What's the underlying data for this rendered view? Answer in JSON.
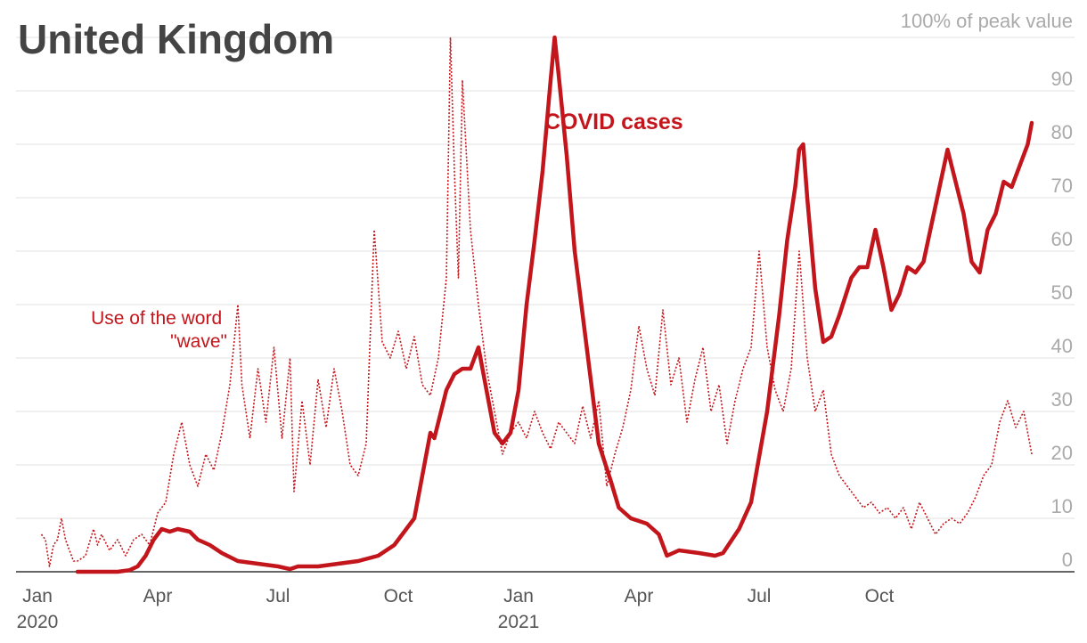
{
  "chart_data": {
    "type": "line",
    "title": "United Kingdom",
    "ylabel": "100% of peak value",
    "ylim": [
      0,
      100
    ],
    "yticks": [
      "0",
      "10",
      "20",
      "30",
      "40",
      "50",
      "60",
      "70",
      "80",
      "90"
    ],
    "xlim_months": [
      0,
      25
    ],
    "xticks": [
      {
        "month": 0,
        "label": "Jan",
        "sublabel": "2020"
      },
      {
        "month": 3,
        "label": "Apr",
        "sublabel": ""
      },
      {
        "month": 6,
        "label": "Jul",
        "sublabel": ""
      },
      {
        "month": 9,
        "label": "Oct",
        "sublabel": ""
      },
      {
        "month": 12,
        "label": "Jan",
        "sublabel": "2021"
      },
      {
        "month": 15,
        "label": "Apr",
        "sublabel": ""
      },
      {
        "month": 18,
        "label": "Jul",
        "sublabel": ""
      },
      {
        "month": 21,
        "label": "Oct",
        "sublabel": ""
      }
    ],
    "colors": {
      "series": "#c3161c",
      "grid": "#e2e2e2",
      "tick": "#aaaaaa",
      "title": "#444444"
    },
    "series": [
      {
        "name": "COVID cases",
        "style": "solid",
        "annotation": "COVID cases",
        "points": [
          [
            1.0,
            0
          ],
          [
            1.5,
            0
          ],
          [
            2.0,
            0
          ],
          [
            2.3,
            0.3
          ],
          [
            2.5,
            1
          ],
          [
            2.7,
            3
          ],
          [
            2.9,
            6
          ],
          [
            3.1,
            8
          ],
          [
            3.3,
            7.5
          ],
          [
            3.5,
            8
          ],
          [
            3.8,
            7.5
          ],
          [
            4.0,
            6
          ],
          [
            4.3,
            5
          ],
          [
            4.6,
            3.5
          ],
          [
            5.0,
            2
          ],
          [
            5.5,
            1.5
          ],
          [
            6.0,
            1
          ],
          [
            6.3,
            0.5
          ],
          [
            6.5,
            1
          ],
          [
            7.0,
            1
          ],
          [
            7.5,
            1.5
          ],
          [
            8.0,
            2
          ],
          [
            8.5,
            3
          ],
          [
            8.9,
            5
          ],
          [
            9.2,
            8
          ],
          [
            9.4,
            10
          ],
          [
            9.6,
            18
          ],
          [
            9.8,
            26
          ],
          [
            9.9,
            25
          ],
          [
            10.0,
            28
          ],
          [
            10.2,
            34
          ],
          [
            10.4,
            37
          ],
          [
            10.6,
            38
          ],
          [
            10.8,
            38
          ],
          [
            11.0,
            42
          ],
          [
            11.2,
            34
          ],
          [
            11.4,
            26
          ],
          [
            11.6,
            24
          ],
          [
            11.8,
            26
          ],
          [
            12.0,
            34
          ],
          [
            12.2,
            50
          ],
          [
            12.4,
            62
          ],
          [
            12.6,
            75
          ],
          [
            12.8,
            92
          ],
          [
            12.9,
            100
          ],
          [
            13.0,
            93
          ],
          [
            13.2,
            78
          ],
          [
            13.4,
            60
          ],
          [
            13.6,
            48
          ],
          [
            13.8,
            36
          ],
          [
            14.0,
            24
          ],
          [
            14.3,
            17
          ],
          [
            14.5,
            12
          ],
          [
            14.8,
            10
          ],
          [
            15.2,
            9
          ],
          [
            15.5,
            7
          ],
          [
            15.7,
            3
          ],
          [
            16.0,
            4
          ],
          [
            16.5,
            3.5
          ],
          [
            16.9,
            3
          ],
          [
            17.1,
            3.5
          ],
          [
            17.5,
            8
          ],
          [
            17.8,
            13
          ],
          [
            18.2,
            30
          ],
          [
            18.5,
            48
          ],
          [
            18.7,
            62
          ],
          [
            18.9,
            72
          ],
          [
            19.0,
            79
          ],
          [
            19.1,
            80
          ],
          [
            19.2,
            70
          ],
          [
            19.4,
            53
          ],
          [
            19.6,
            43
          ],
          [
            19.8,
            44
          ],
          [
            20.0,
            48
          ],
          [
            20.3,
            55
          ],
          [
            20.5,
            57
          ],
          [
            20.7,
            57
          ],
          [
            20.9,
            64
          ],
          [
            21.1,
            57
          ],
          [
            21.3,
            49
          ],
          [
            21.5,
            52
          ],
          [
            21.7,
            57
          ],
          [
            21.9,
            56
          ],
          [
            22.1,
            58
          ],
          [
            22.3,
            65
          ],
          [
            22.5,
            72
          ],
          [
            22.7,
            79
          ],
          [
            22.9,
            73
          ],
          [
            23.1,
            67
          ],
          [
            23.3,
            58
          ],
          [
            23.5,
            56
          ],
          [
            23.7,
            64
          ],
          [
            23.9,
            67
          ],
          [
            24.1,
            73
          ],
          [
            24.3,
            72
          ],
          [
            24.5,
            76
          ],
          [
            24.7,
            80
          ],
          [
            24.8,
            84
          ]
        ]
      },
      {
        "name": "Use of the word \"wave\"",
        "style": "dotted",
        "annotation": "Use of the word \"wave\"",
        "points": [
          [
            0.1,
            7
          ],
          [
            0.2,
            6
          ],
          [
            0.3,
            1
          ],
          [
            0.4,
            5
          ],
          [
            0.5,
            6
          ],
          [
            0.6,
            10
          ],
          [
            0.7,
            6
          ],
          [
            0.8,
            4
          ],
          [
            0.9,
            2
          ],
          [
            1.0,
            2
          ],
          [
            1.2,
            3
          ],
          [
            1.4,
            8
          ],
          [
            1.5,
            5
          ],
          [
            1.6,
            7
          ],
          [
            1.8,
            4
          ],
          [
            2.0,
            6
          ],
          [
            2.2,
            3
          ],
          [
            2.4,
            6
          ],
          [
            2.6,
            7
          ],
          [
            2.8,
            5
          ],
          [
            3.0,
            11
          ],
          [
            3.2,
            13
          ],
          [
            3.4,
            22
          ],
          [
            3.6,
            28
          ],
          [
            3.8,
            20
          ],
          [
            4.0,
            16
          ],
          [
            4.2,
            22
          ],
          [
            4.4,
            19
          ],
          [
            4.6,
            26
          ],
          [
            4.8,
            35
          ],
          [
            5.0,
            50
          ],
          [
            5.1,
            35
          ],
          [
            5.3,
            25
          ],
          [
            5.5,
            38
          ],
          [
            5.7,
            28
          ],
          [
            5.9,
            42
          ],
          [
            6.1,
            25
          ],
          [
            6.3,
            40
          ],
          [
            6.4,
            15
          ],
          [
            6.6,
            32
          ],
          [
            6.8,
            20
          ],
          [
            7.0,
            36
          ],
          [
            7.2,
            27
          ],
          [
            7.4,
            38
          ],
          [
            7.6,
            30
          ],
          [
            7.8,
            20
          ],
          [
            8.0,
            18
          ],
          [
            8.2,
            24
          ],
          [
            8.4,
            64
          ],
          [
            8.6,
            43
          ],
          [
            8.8,
            40
          ],
          [
            9.0,
            45
          ],
          [
            9.2,
            38
          ],
          [
            9.4,
            44
          ],
          [
            9.6,
            35
          ],
          [
            9.8,
            33
          ],
          [
            10.0,
            40
          ],
          [
            10.2,
            55
          ],
          [
            10.3,
            100
          ],
          [
            10.4,
            75
          ],
          [
            10.5,
            55
          ],
          [
            10.6,
            92
          ],
          [
            10.8,
            64
          ],
          [
            11.0,
            50
          ],
          [
            11.2,
            38
          ],
          [
            11.4,
            30
          ],
          [
            11.6,
            22
          ],
          [
            11.8,
            26
          ],
          [
            12.0,
            28
          ],
          [
            12.2,
            25
          ],
          [
            12.4,
            30
          ],
          [
            12.6,
            26
          ],
          [
            12.8,
            23
          ],
          [
            13.0,
            28
          ],
          [
            13.2,
            26
          ],
          [
            13.4,
            24
          ],
          [
            13.6,
            31
          ],
          [
            13.8,
            25
          ],
          [
            14.0,
            32
          ],
          [
            14.2,
            16
          ],
          [
            14.4,
            22
          ],
          [
            14.6,
            27
          ],
          [
            14.8,
            34
          ],
          [
            15.0,
            46
          ],
          [
            15.2,
            38
          ],
          [
            15.4,
            33
          ],
          [
            15.6,
            49
          ],
          [
            15.8,
            35
          ],
          [
            16.0,
            40
          ],
          [
            16.2,
            28
          ],
          [
            16.4,
            36
          ],
          [
            16.6,
            42
          ],
          [
            16.8,
            30
          ],
          [
            17.0,
            35
          ],
          [
            17.2,
            24
          ],
          [
            17.4,
            32
          ],
          [
            17.6,
            38
          ],
          [
            17.8,
            42
          ],
          [
            18.0,
            60
          ],
          [
            18.2,
            42
          ],
          [
            18.4,
            34
          ],
          [
            18.6,
            30
          ],
          [
            18.8,
            38
          ],
          [
            19.0,
            60
          ],
          [
            19.2,
            40
          ],
          [
            19.4,
            30
          ],
          [
            19.6,
            34
          ],
          [
            19.8,
            22
          ],
          [
            20.0,
            18
          ],
          [
            20.2,
            16
          ],
          [
            20.4,
            14
          ],
          [
            20.6,
            12
          ],
          [
            20.8,
            13
          ],
          [
            21.0,
            11
          ],
          [
            21.2,
            12
          ],
          [
            21.4,
            10
          ],
          [
            21.6,
            12
          ],
          [
            21.8,
            8
          ],
          [
            22.0,
            13
          ],
          [
            22.2,
            10
          ],
          [
            22.4,
            7
          ],
          [
            22.6,
            9
          ],
          [
            22.8,
            10
          ],
          [
            23.0,
            9
          ],
          [
            23.2,
            11
          ],
          [
            23.4,
            14
          ],
          [
            23.6,
            18
          ],
          [
            23.8,
            20
          ],
          [
            24.0,
            28
          ],
          [
            24.2,
            32
          ],
          [
            24.4,
            27
          ],
          [
            24.6,
            30
          ],
          [
            24.8,
            22
          ]
        ]
      }
    ]
  }
}
